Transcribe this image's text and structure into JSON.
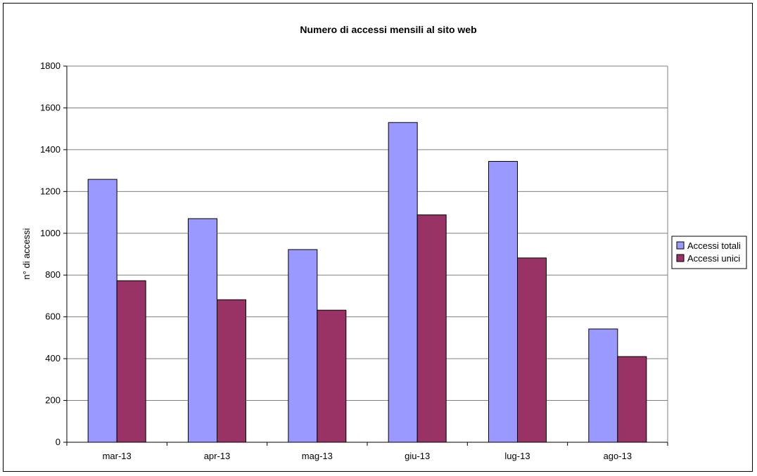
{
  "chart_data": {
    "type": "bar",
    "title": "Numero di accessi mensili al sito web",
    "xlabel": "",
    "ylabel": "n° di accessi",
    "ylim": [
      0,
      1800
    ],
    "yticks": [
      0,
      200,
      400,
      600,
      800,
      1000,
      1200,
      1400,
      1600,
      1800
    ],
    "categories": [
      "mar-13",
      "apr-13",
      "mag-13",
      "giu-13",
      "lug-13",
      "ago-13"
    ],
    "series": [
      {
        "name": "Accessi totali",
        "color": "#9999ff",
        "values": [
          1258,
          1070,
          922,
          1530,
          1344,
          542
        ]
      },
      {
        "name": "Accessi unici",
        "color": "#993366",
        "values": [
          773,
          682,
          632,
          1088,
          882,
          410
        ]
      }
    ],
    "grid": true,
    "legend_position": "right"
  }
}
